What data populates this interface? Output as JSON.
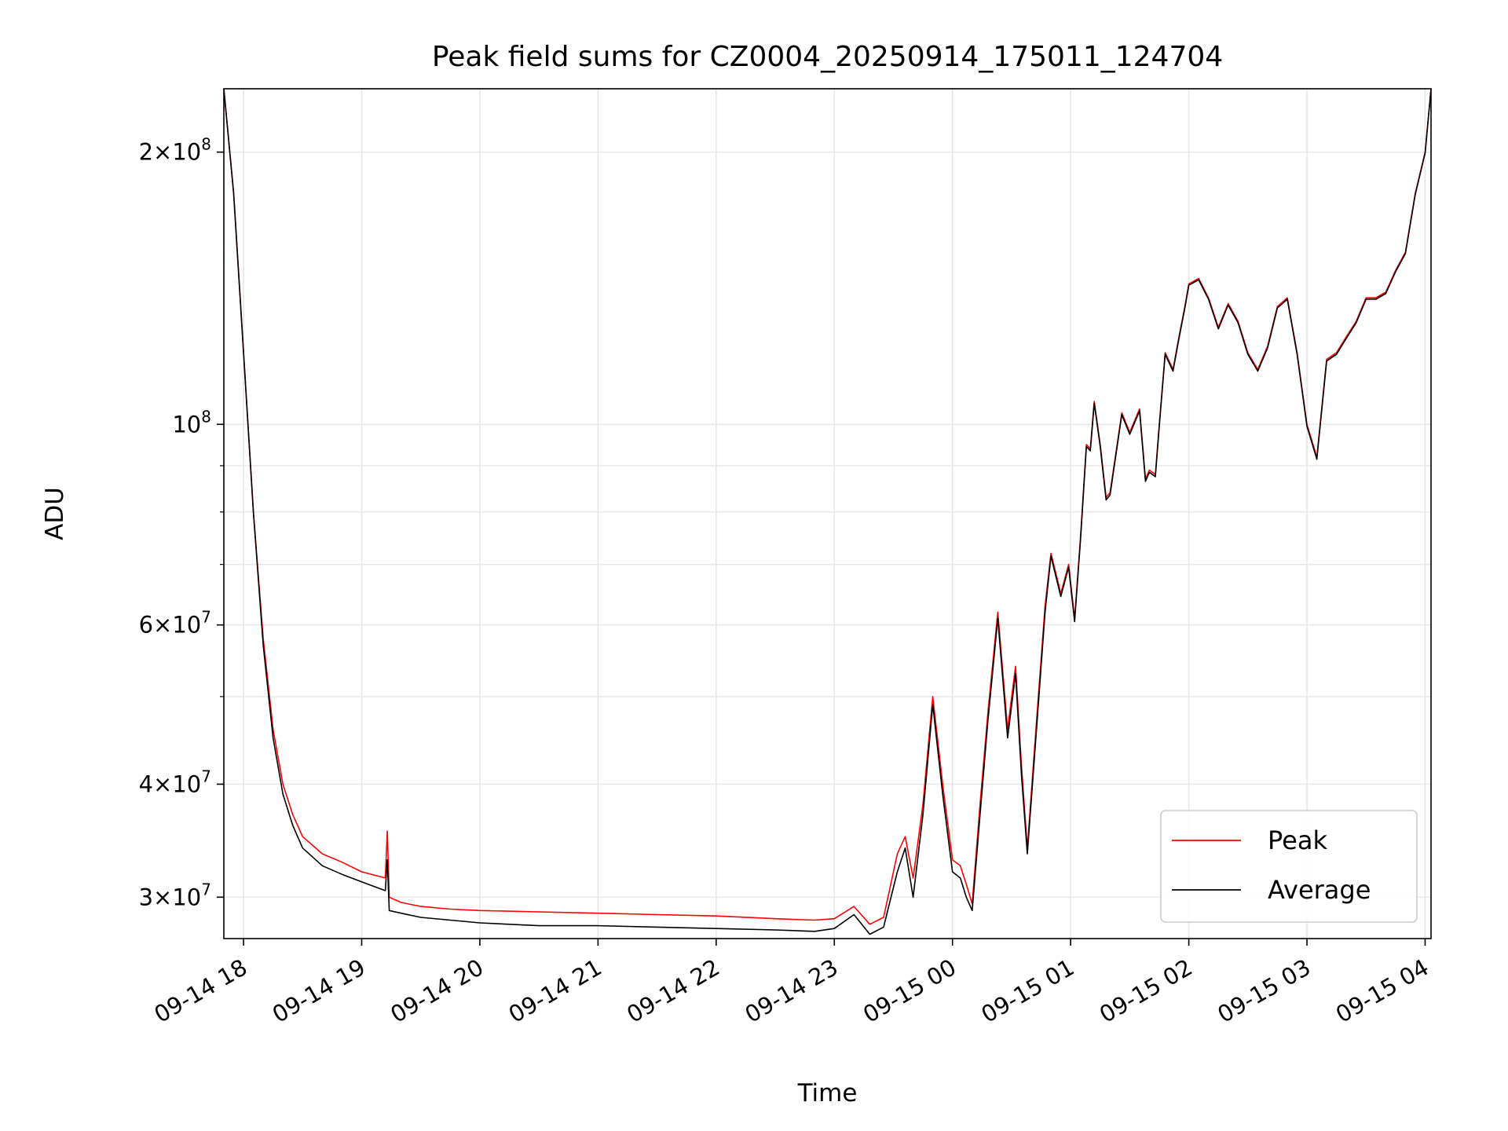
{
  "chart_data": {
    "type": "line",
    "title": "Peak field sums for CZ0004_20250914_175011_124704",
    "xlabel": "Time",
    "ylabel": "ADU",
    "xscale": "time",
    "yscale": "log",
    "grid": true,
    "legend_position": "lower-right",
    "xlim": [
      "2025-09-14 17:50",
      "2025-09-15 04:03"
    ],
    "ylim": [
      27000000,
      235000000
    ],
    "x_tick_labels": [
      "09-14 18",
      "09-14 19",
      "09-14 20",
      "09-14 21",
      "09-14 22",
      "09-14 23",
      "09-15 00",
      "09-15 01",
      "09-15 02",
      "09-15 03",
      "09-15 04"
    ],
    "y_tick_labels": [
      {
        "value": 30000000,
        "label": "3×10",
        "exp": "7"
      },
      {
        "value": 40000000,
        "label": "4×10",
        "exp": "7"
      },
      {
        "value": 60000000,
        "label": "6×10",
        "exp": "7"
      },
      {
        "value": 100000000,
        "label": "10",
        "exp": "8"
      },
      {
        "value": 200000000,
        "label": "2×10",
        "exp": "8"
      }
    ],
    "series": [
      {
        "name": "Peak",
        "color": "#ff0000",
        "x": [
          "2025-09-14 17:50",
          "2025-09-14 17:55",
          "2025-09-14 18:00",
          "2025-09-14 18:05",
          "2025-09-14 18:10",
          "2025-09-14 18:15",
          "2025-09-14 18:20",
          "2025-09-14 18:25",
          "2025-09-14 18:30",
          "2025-09-14 18:40",
          "2025-09-14 18:50",
          "2025-09-14 19:00",
          "2025-09-14 19:12",
          "2025-09-14 19:13",
          "2025-09-14 19:14",
          "2025-09-14 19:20",
          "2025-09-14 19:30",
          "2025-09-14 19:45",
          "2025-09-14 20:00",
          "2025-09-14 20:30",
          "2025-09-14 21:00",
          "2025-09-14 21:30",
          "2025-09-14 22:00",
          "2025-09-14 22:30",
          "2025-09-14 22:50",
          "2025-09-14 23:00",
          "2025-09-14 23:10",
          "2025-09-14 23:18",
          "2025-09-14 23:25",
          "2025-09-14 23:32",
          "2025-09-14 23:36",
          "2025-09-14 23:40",
          "2025-09-14 23:45",
          "2025-09-14 23:50",
          "2025-09-14 23:55",
          "2025-09-15 00:00",
          "2025-09-15 00:04",
          "2025-09-15 00:07",
          "2025-09-15 00:10",
          "2025-09-15 00:14",
          "2025-09-15 00:18",
          "2025-09-15 00:23",
          "2025-09-15 00:28",
          "2025-09-15 00:32",
          "2025-09-15 00:35",
          "2025-09-15 00:38",
          "2025-09-15 00:43",
          "2025-09-15 00:47",
          "2025-09-15 00:50",
          "2025-09-15 00:55",
          "2025-09-15 00:59",
          "2025-09-15 01:02",
          "2025-09-15 01:05",
          "2025-09-15 01:08",
          "2025-09-15 01:10",
          "2025-09-15 01:12",
          "2025-09-15 01:15",
          "2025-09-15 01:18",
          "2025-09-15 01:20",
          "2025-09-15 01:26",
          "2025-09-15 01:30",
          "2025-09-15 01:35",
          "2025-09-15 01:38",
          "2025-09-15 01:40",
          "2025-09-15 01:43",
          "2025-09-15 01:45",
          "2025-09-15 01:48",
          "2025-09-15 01:52",
          "2025-09-15 01:55",
          "2025-09-15 01:58",
          "2025-09-15 02:00",
          "2025-09-15 02:05",
          "2025-09-15 02:10",
          "2025-09-15 02:15",
          "2025-09-15 02:20",
          "2025-09-15 02:25",
          "2025-09-15 02:30",
          "2025-09-15 02:35",
          "2025-09-15 02:40",
          "2025-09-15 02:45",
          "2025-09-15 02:50",
          "2025-09-15 02:55",
          "2025-09-15 03:00",
          "2025-09-15 03:05",
          "2025-09-15 03:10",
          "2025-09-15 03:15",
          "2025-09-15 03:20",
          "2025-09-15 03:25",
          "2025-09-15 03:30",
          "2025-09-15 03:35",
          "2025-09-15 03:40",
          "2025-09-15 03:45",
          "2025-09-15 03:50",
          "2025-09-15 03:55",
          "2025-09-15 04:00",
          "2025-09-15 04:03"
        ],
        "y": [
          235000000,
          180000000,
          120000000,
          80000000,
          58000000,
          46000000,
          40000000,
          37000000,
          35000000,
          33500000,
          32800000,
          32000000,
          31500000,
          35500000,
          30000000,
          29600000,
          29300000,
          29100000,
          29000000,
          28900000,
          28800000,
          28700000,
          28600000,
          28400000,
          28300000,
          28400000,
          29300000,
          28000000,
          28500000,
          33500000,
          35000000,
          31500000,
          38000000,
          50000000,
          40000000,
          33000000,
          32500000,
          31000000,
          29500000,
          38000000,
          48000000,
          62000000,
          46000000,
          54000000,
          42000000,
          34000000,
          48000000,
          63000000,
          72000000,
          65000000,
          70000000,
          61000000,
          75000000,
          95000000,
          94000000,
          106000000,
          95000000,
          83000000,
          84000000,
          103000000,
          98000000,
          104000000,
          87000000,
          89000000,
          88000000,
          100000000,
          120000000,
          115000000,
          125000000,
          135000000,
          143000000,
          145000000,
          138000000,
          128000000,
          136000000,
          130000000,
          120000000,
          115000000,
          122000000,
          135000000,
          138000000,
          120000000,
          100000000,
          92000000,
          118000000,
          120000000,
          125000000,
          130000000,
          138000000,
          138000000,
          140000000,
          148000000,
          155000000,
          180000000,
          200000000,
          235000000
        ]
      },
      {
        "name": "Average",
        "color": "#000000",
        "x": [
          "2025-09-14 17:50",
          "2025-09-14 17:55",
          "2025-09-14 18:00",
          "2025-09-14 18:05",
          "2025-09-14 18:10",
          "2025-09-14 18:15",
          "2025-09-14 18:20",
          "2025-09-14 18:25",
          "2025-09-14 18:30",
          "2025-09-14 18:40",
          "2025-09-14 18:50",
          "2025-09-14 19:00",
          "2025-09-14 19:12",
          "2025-09-14 19:13",
          "2025-09-14 19:14",
          "2025-09-14 19:20",
          "2025-09-14 19:30",
          "2025-09-14 19:45",
          "2025-09-14 20:00",
          "2025-09-14 20:30",
          "2025-09-14 21:00",
          "2025-09-14 21:30",
          "2025-09-14 22:00",
          "2025-09-14 22:30",
          "2025-09-14 22:50",
          "2025-09-14 23:00",
          "2025-09-14 23:10",
          "2025-09-14 23:18",
          "2025-09-14 23:25",
          "2025-09-14 23:32",
          "2025-09-14 23:36",
          "2025-09-14 23:40",
          "2025-09-14 23:45",
          "2025-09-14 23:50",
          "2025-09-14 23:55",
          "2025-09-15 00:00",
          "2025-09-15 00:04",
          "2025-09-15 00:07",
          "2025-09-15 00:10",
          "2025-09-15 00:14",
          "2025-09-15 00:18",
          "2025-09-15 00:23",
          "2025-09-15 00:28",
          "2025-09-15 00:32",
          "2025-09-15 00:35",
          "2025-09-15 00:38",
          "2025-09-15 00:43",
          "2025-09-15 00:47",
          "2025-09-15 00:50",
          "2025-09-15 00:55",
          "2025-09-15 00:59",
          "2025-09-15 01:02",
          "2025-09-15 01:05",
          "2025-09-15 01:08",
          "2025-09-15 01:10",
          "2025-09-15 01:12",
          "2025-09-15 01:15",
          "2025-09-15 01:18",
          "2025-09-15 01:20",
          "2025-09-15 01:26",
          "2025-09-15 01:30",
          "2025-09-15 01:35",
          "2025-09-15 01:38",
          "2025-09-15 01:40",
          "2025-09-15 01:43",
          "2025-09-15 01:45",
          "2025-09-15 01:48",
          "2025-09-15 01:52",
          "2025-09-15 01:55",
          "2025-09-15 01:58",
          "2025-09-15 02:00",
          "2025-09-15 02:05",
          "2025-09-15 02:10",
          "2025-09-15 02:15",
          "2025-09-15 02:20",
          "2025-09-15 02:25",
          "2025-09-15 02:30",
          "2025-09-15 02:35",
          "2025-09-15 02:40",
          "2025-09-15 02:45",
          "2025-09-15 02:50",
          "2025-09-15 02:55",
          "2025-09-15 03:00",
          "2025-09-15 03:05",
          "2025-09-15 03:10",
          "2025-09-15 03:15",
          "2025-09-15 03:20",
          "2025-09-15 03:25",
          "2025-09-15 03:30",
          "2025-09-15 03:35",
          "2025-09-15 03:40",
          "2025-09-15 03:45",
          "2025-09-15 03:50",
          "2025-09-15 03:55",
          "2025-09-15 04:00",
          "2025-09-15 04:03"
        ],
        "y": [
          235000000,
          180000000,
          120000000,
          80000000,
          57000000,
          45000000,
          39000000,
          36000000,
          34000000,
          32500000,
          31800000,
          31200000,
          30500000,
          33000000,
          29000000,
          28800000,
          28500000,
          28300000,
          28100000,
          27900000,
          27900000,
          27800000,
          27700000,
          27600000,
          27500000,
          27700000,
          28700000,
          27300000,
          27800000,
          32000000,
          34000000,
          30000000,
          37000000,
          49000000,
          39000000,
          32000000,
          31500000,
          30000000,
          29000000,
          37000000,
          47000000,
          61000000,
          45000000,
          53000000,
          41000000,
          33500000,
          47000000,
          62000000,
          71500000,
          64500000,
          69500000,
          60500000,
          74500000,
          94500000,
          93500000,
          105500000,
          94500000,
          82500000,
          83500000,
          102500000,
          97500000,
          103500000,
          86500000,
          88500000,
          87500000,
          99500000,
          119500000,
          114500000,
          124500000,
          134500000,
          142500000,
          144500000,
          137500000,
          127500000,
          135500000,
          129500000,
          119500000,
          114500000,
          121500000,
          134500000,
          137500000,
          119500000,
          99500000,
          91500000,
          117500000,
          119500000,
          124500000,
          129500000,
          137500000,
          137500000,
          139500000,
          147500000,
          154500000,
          179500000,
          199500000,
          235000000
        ]
      }
    ]
  }
}
